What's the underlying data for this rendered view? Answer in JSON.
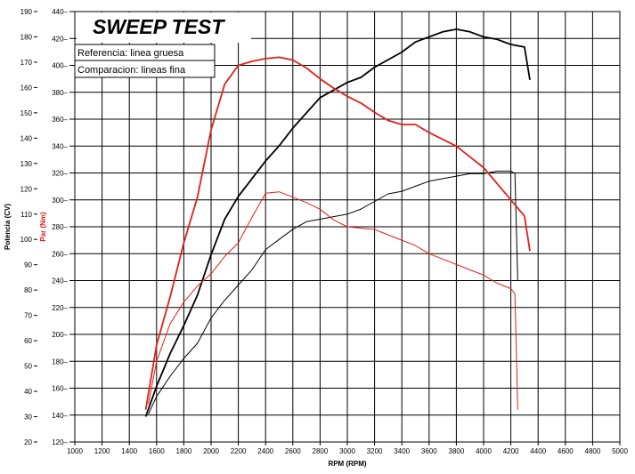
{
  "chart_data": {
    "type": "line",
    "title": "SWEEP TEST",
    "xlabel": "RPM (RPM)",
    "ylabel_left": "Potencia (CV)",
    "ylabel_right": "Par (Nm)",
    "xlim": [
      1000,
      5000
    ],
    "ylim_left": [
      20,
      190
    ],
    "ylim_right": [
      120,
      440
    ],
    "x_ticks": [
      1000,
      1200,
      1400,
      1600,
      1800,
      2000,
      2200,
      2400,
      2600,
      2800,
      3000,
      3200,
      3400,
      3600,
      3800,
      4000,
      4200,
      4400,
      4600,
      4800,
      5000
    ],
    "y_left_ticks": [
      20,
      30,
      40,
      50,
      60,
      70,
      80,
      90,
      100,
      110,
      120,
      130,
      140,
      150,
      160,
      170,
      180,
      190
    ],
    "y_right_ticks": [
      120,
      140,
      160,
      180,
      200,
      220,
      240,
      260,
      280,
      300,
      320,
      340,
      360,
      380,
      400,
      420,
      440
    ],
    "grid": true,
    "legend": [
      "Referencia: linea gruesa",
      "Comparacion: lineas fina"
    ],
    "legend_position": "top-left",
    "colors": {
      "power": "#000000",
      "torque": "#e0201a",
      "grid": "#000000"
    },
    "series": [
      {
        "name": "Potencia referencia",
        "axis": "left",
        "color": "#000000",
        "width": "thick",
        "points": [
          [
            1520,
            30
          ],
          [
            1600,
            42
          ],
          [
            1700,
            55
          ],
          [
            1800,
            66
          ],
          [
            1900,
            78
          ],
          [
            2000,
            94
          ],
          [
            2100,
            108
          ],
          [
            2200,
            117
          ],
          [
            2300,
            124
          ],
          [
            2400,
            131
          ],
          [
            2500,
            137
          ],
          [
            2600,
            144
          ],
          [
            2700,
            150
          ],
          [
            2800,
            156
          ],
          [
            2900,
            159
          ],
          [
            3000,
            162
          ],
          [
            3100,
            164
          ],
          [
            3200,
            168
          ],
          [
            3300,
            171
          ],
          [
            3400,
            174
          ],
          [
            3500,
            178
          ],
          [
            3600,
            180
          ],
          [
            3700,
            182
          ],
          [
            3800,
            183
          ],
          [
            3900,
            182
          ],
          [
            4000,
            180
          ],
          [
            4100,
            179
          ],
          [
            4200,
            177
          ],
          [
            4300,
            176
          ],
          [
            4340,
            163
          ]
        ]
      },
      {
        "name": "Potencia comparacion",
        "axis": "left",
        "color": "#000000",
        "width": "thin",
        "points": [
          [
            1540,
            31
          ],
          [
            1600,
            38
          ],
          [
            1700,
            46
          ],
          [
            1800,
            53
          ],
          [
            1900,
            59
          ],
          [
            2000,
            69
          ],
          [
            2100,
            76
          ],
          [
            2200,
            82
          ],
          [
            2300,
            88
          ],
          [
            2400,
            96
          ],
          [
            2500,
            100
          ],
          [
            2600,
            104
          ],
          [
            2700,
            107
          ],
          [
            2800,
            108
          ],
          [
            2900,
            109
          ],
          [
            3000,
            110
          ],
          [
            3100,
            112
          ],
          [
            3200,
            115
          ],
          [
            3300,
            118
          ],
          [
            3400,
            119
          ],
          [
            3500,
            121
          ],
          [
            3600,
            123
          ],
          [
            3700,
            124
          ],
          [
            3800,
            125
          ],
          [
            3900,
            126
          ],
          [
            4000,
            126
          ],
          [
            4100,
            127
          ],
          [
            4200,
            127
          ],
          [
            4230,
            126
          ],
          [
            4250,
            84
          ]
        ]
      },
      {
        "name": "Par referencia",
        "axis": "right",
        "color": "#e0201a",
        "width": "thick",
        "points": [
          [
            1520,
            144
          ],
          [
            1600,
            192
          ],
          [
            1700,
            228
          ],
          [
            1800,
            268
          ],
          [
            1900,
            302
          ],
          [
            2000,
            352
          ],
          [
            2100,
            386
          ],
          [
            2200,
            400
          ],
          [
            2300,
            403
          ],
          [
            2400,
            405
          ],
          [
            2500,
            406
          ],
          [
            2600,
            404
          ],
          [
            2700,
            398
          ],
          [
            2800,
            390
          ],
          [
            2900,
            383
          ],
          [
            3000,
            377
          ],
          [
            3100,
            372
          ],
          [
            3200,
            365
          ],
          [
            3300,
            359
          ],
          [
            3400,
            356
          ],
          [
            3500,
            356
          ],
          [
            3600,
            350
          ],
          [
            3700,
            345
          ],
          [
            3800,
            340
          ],
          [
            3900,
            332
          ],
          [
            4000,
            324
          ],
          [
            4100,
            312
          ],
          [
            4200,
            300
          ],
          [
            4300,
            288
          ],
          [
            4340,
            262
          ]
        ]
      },
      {
        "name": "Par comparacion",
        "axis": "right",
        "color": "#e0201a",
        "width": "thin",
        "points": [
          [
            1540,
            148
          ],
          [
            1600,
            180
          ],
          [
            1700,
            208
          ],
          [
            1800,
            224
          ],
          [
            1900,
            236
          ],
          [
            2000,
            245
          ],
          [
            2100,
            258
          ],
          [
            2200,
            268
          ],
          [
            2300,
            287
          ],
          [
            2400,
            305
          ],
          [
            2500,
            306
          ],
          [
            2600,
            302
          ],
          [
            2700,
            298
          ],
          [
            2800,
            293
          ],
          [
            2900,
            285
          ],
          [
            3000,
            280
          ],
          [
            3100,
            279
          ],
          [
            3200,
            278
          ],
          [
            3300,
            274
          ],
          [
            3400,
            270
          ],
          [
            3500,
            266
          ],
          [
            3600,
            260
          ],
          [
            3700,
            256
          ],
          [
            3800,
            252
          ],
          [
            3900,
            248
          ],
          [
            4000,
            244
          ],
          [
            4100,
            238
          ],
          [
            4200,
            234
          ],
          [
            4230,
            230
          ],
          [
            4250,
            144
          ]
        ]
      }
    ]
  }
}
